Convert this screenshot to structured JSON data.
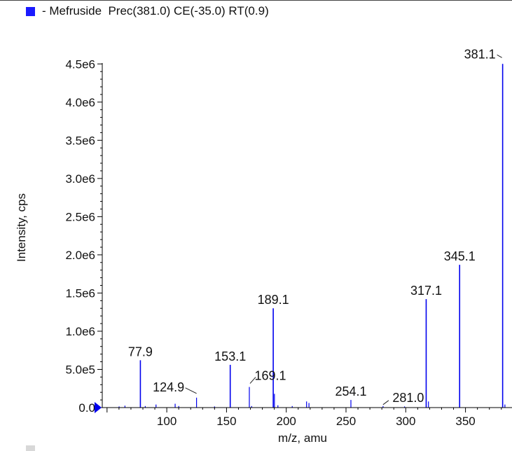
{
  "colors": {
    "series": "#0000ee",
    "axis": "#000000",
    "legend_swatch": "#1a1aff"
  },
  "legend": {
    "label": "- Mefruside  Prec(381.0) CE(-35.0) RT(0.9)"
  },
  "chart_data": {
    "type": "bar",
    "xlabel": "m/z, amu",
    "ylabel": "Intensity, cps",
    "xlim": [
      46,
      386
    ],
    "ylim": [
      0,
      4750000.0
    ],
    "x_ticks": [
      {
        "value": 100,
        "label": "100"
      },
      {
        "value": 150,
        "label": "150"
      },
      {
        "value": 200,
        "label": "200"
      },
      {
        "value": 250,
        "label": "250"
      },
      {
        "value": 300,
        "label": "300"
      },
      {
        "value": 350,
        "label": "350"
      }
    ],
    "y_ticks": [
      {
        "value": 0,
        "label": "0.0"
      },
      {
        "value": 500000,
        "label": "5.0e5"
      },
      {
        "value": 1000000,
        "label": "1.0e6"
      },
      {
        "value": 1500000,
        "label": "1.5e6"
      },
      {
        "value": 2000000,
        "label": "2.0e6"
      },
      {
        "value": 2500000,
        "label": "2.5e6"
      },
      {
        "value": 3000000,
        "label": "3.0e6"
      },
      {
        "value": 3500000,
        "label": "3.5e6"
      },
      {
        "value": 4000000,
        "label": "4.0e6"
      },
      {
        "value": 4500000,
        "label": "4.5e6"
      }
    ],
    "peaks": [
      {
        "mz": 60.1,
        "intensity": 15000
      },
      {
        "mz": 65.0,
        "intensity": 25000
      },
      {
        "mz": 77.9,
        "intensity": 620000
      },
      {
        "mz": 82.0,
        "intensity": 20000
      },
      {
        "mz": 91.0,
        "intensity": 40000
      },
      {
        "mz": 107.0,
        "intensity": 50000
      },
      {
        "mz": 110.0,
        "intensity": 20000
      },
      {
        "mz": 124.9,
        "intensity": 130000
      },
      {
        "mz": 140.0,
        "intensity": 15000
      },
      {
        "mz": 153.1,
        "intensity": 560000
      },
      {
        "mz": 169.1,
        "intensity": 270000
      },
      {
        "mz": 171.0,
        "intensity": 20000
      },
      {
        "mz": 189.1,
        "intensity": 1300000
      },
      {
        "mz": 190.1,
        "intensity": 180000
      },
      {
        "mz": 193.0,
        "intensity": 30000
      },
      {
        "mz": 205.0,
        "intensity": 20000
      },
      {
        "mz": 217.0,
        "intensity": 80000
      },
      {
        "mz": 219.0,
        "intensity": 60000
      },
      {
        "mz": 254.1,
        "intensity": 100000
      },
      {
        "mz": 281.0,
        "intensity": 20000
      },
      {
        "mz": 299.0,
        "intensity": 15000
      },
      {
        "mz": 317.1,
        "intensity": 1420000
      },
      {
        "mz": 319.0,
        "intensity": 80000
      },
      {
        "mz": 345.1,
        "intensity": 1870000
      },
      {
        "mz": 381.1,
        "intensity": 4500000
      },
      {
        "mz": 383.0,
        "intensity": 40000
      }
    ],
    "annotations": [
      {
        "text": "77.9",
        "mz": 77.9,
        "intensity": 620000
      },
      {
        "text": "124.9",
        "mz": 124.9,
        "intensity": 130000,
        "leader": true
      },
      {
        "text": "153.1",
        "mz": 153.1,
        "intensity": 560000
      },
      {
        "text": "169.1",
        "mz": 169.1,
        "intensity": 270000,
        "leader": true
      },
      {
        "text": "189.1",
        "mz": 189.1,
        "intensity": 1300000
      },
      {
        "text": "254.1",
        "mz": 254.1,
        "intensity": 100000
      },
      {
        "text": "281.0",
        "mz": 281.0,
        "intensity": 20000,
        "leader": true
      },
      {
        "text": "317.1",
        "mz": 317.1,
        "intensity": 1420000
      },
      {
        "text": "345.1",
        "mz": 345.1,
        "intensity": 1870000
      },
      {
        "text": "381.1",
        "mz": 381.1,
        "intensity": 4500000,
        "leader": true
      }
    ],
    "grid": false,
    "legend_position": "top-left"
  }
}
